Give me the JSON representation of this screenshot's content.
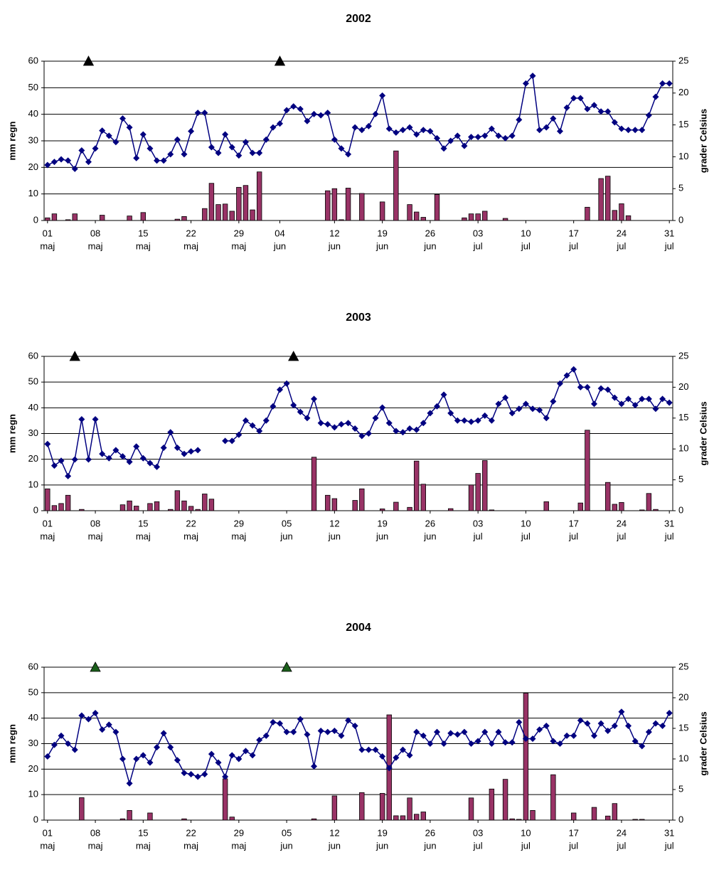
{
  "chart_data": [
    {
      "type": "bar_line",
      "title": "2002",
      "ylabel": "mm regn",
      "y2label": "grader Celsius",
      "categories": [
        [
          "01",
          "maj"
        ],
        null,
        null,
        null,
        null,
        null,
        null,
        [
          "08",
          "maj"
        ],
        null,
        null,
        null,
        null,
        null,
        null,
        [
          "15",
          "maj"
        ],
        null,
        null,
        null,
        null,
        null,
        null,
        [
          "22",
          "maj"
        ],
        null,
        null,
        null,
        null,
        null,
        null,
        [
          "29",
          "maj"
        ],
        null,
        null,
        null,
        null,
        null,
        [
          "04",
          "jun"
        ],
        null,
        null,
        null,
        null,
        null,
        null,
        null,
        [
          "12",
          "jun"
        ],
        null,
        null,
        null,
        null,
        null,
        null,
        [
          "19",
          "jun"
        ],
        null,
        null,
        null,
        null,
        null,
        null,
        [
          "26",
          "jun"
        ],
        null,
        null,
        null,
        null,
        null,
        null,
        [
          "03",
          "jul"
        ],
        null,
        null,
        null,
        null,
        null,
        null,
        [
          "10",
          "jul"
        ],
        null,
        null,
        null,
        null,
        null,
        null,
        [
          "17",
          "jul"
        ],
        null,
        null,
        null,
        null,
        null,
        null,
        [
          "24",
          "jul"
        ],
        null,
        null,
        null,
        null,
        null,
        null,
        [
          "31",
          "jul"
        ]
      ],
      "ylim": [
        0,
        60
      ],
      "yticks": [
        0,
        10,
        20,
        30,
        40,
        50,
        60
      ],
      "y2lim": [
        0,
        25
      ],
      "y2ticks": [
        0,
        5,
        10,
        15,
        20,
        25
      ],
      "grid": true,
      "series": [
        {
          "kind": "bar",
          "color": "#993366",
          "values": [
            1,
            2.5,
            0,
            0.3,
            2.5,
            0,
            0,
            0,
            2,
            0,
            0,
            0,
            1.7,
            0,
            3,
            0,
            0,
            0,
            0,
            0.5,
            1.5,
            0,
            0,
            4.5,
            14,
            6,
            6.2,
            3.5,
            12.5,
            13.2,
            4,
            18.3,
            0,
            0,
            0,
            0,
            0,
            0,
            0,
            0,
            0,
            11.2,
            12,
            0.3,
            12.2,
            0,
            10.2,
            0,
            0,
            7,
            0,
            26.2,
            0,
            6,
            3.2,
            1.2,
            0,
            9.8,
            0,
            0,
            0,
            1,
            2.5,
            2.5,
            3.5,
            0,
            0,
            0.8,
            0,
            0,
            0,
            0,
            0,
            0,
            0,
            0,
            0,
            0,
            0,
            5,
            0,
            15.8,
            16.7,
            3.8,
            6.3,
            1.8,
            0,
            0,
            0,
            0,
            0,
            0
          ]
        },
        {
          "kind": "line",
          "axis": "y2",
          "color": "#000080",
          "values": [
            8.7,
            9.2,
            9.6,
            9.4,
            8.1,
            11.0,
            9.2,
            11.3,
            14.1,
            13.3,
            12.3,
            16.0,
            14.6,
            9.8,
            13.5,
            11.3,
            9.4,
            9.4,
            10.4,
            12.7,
            10.4,
            14.0,
            16.9,
            16.9,
            11.5,
            10.6,
            13.5,
            11.5,
            10.2,
            12.3,
            10.6,
            10.6,
            12.7,
            14.6,
            15.2,
            17.3,
            17.9,
            17.5,
            15.6,
            16.7,
            16.5,
            16.9,
            12.7,
            11.3,
            10.4,
            14.6,
            14.2,
            14.8,
            16.7,
            19.6,
            14.4,
            13.8,
            14.2,
            14.6,
            13.5,
            14.2,
            14.0,
            12.9,
            11.3,
            12.5,
            13.3,
            11.7,
            13.1,
            13.1,
            13.3,
            14.4,
            13.3,
            12.9,
            13.3,
            15.8,
            21.5,
            22.7,
            14.2,
            14.6,
            16.0,
            14.0,
            17.7,
            19.2,
            19.2,
            17.5,
            18.1,
            17.1,
            17.1,
            15.4,
            14.4,
            14.2,
            14.2,
            14.2,
            16.5,
            19.4,
            21.5,
            21.5
          ]
        }
      ],
      "markers": {
        "color": "#000000",
        "x": [
          6,
          34
        ],
        "y": [
          60,
          60
        ]
      }
    },
    {
      "type": "bar_line",
      "title": "2003",
      "ylabel": "mm regn",
      "y2label": "grader Celsius",
      "categories": [
        [
          "01",
          "maj"
        ],
        null,
        null,
        null,
        null,
        null,
        null,
        [
          "08",
          "maj"
        ],
        null,
        null,
        null,
        null,
        null,
        null,
        [
          "15",
          "maj"
        ],
        null,
        null,
        null,
        null,
        null,
        null,
        [
          "22",
          "maj"
        ],
        null,
        null,
        null,
        null,
        null,
        null,
        [
          "29",
          "maj"
        ],
        null,
        null,
        null,
        null,
        null,
        null,
        [
          "05",
          "jun"
        ],
        null,
        null,
        null,
        null,
        null,
        null,
        [
          "12",
          "jun"
        ],
        null,
        null,
        null,
        null,
        null,
        null,
        [
          "19",
          "jun"
        ],
        null,
        null,
        null,
        null,
        null,
        null,
        [
          "26",
          "jun"
        ],
        null,
        null,
        null,
        null,
        null,
        null,
        [
          "03",
          "jul"
        ],
        null,
        null,
        null,
        null,
        null,
        null,
        [
          "10",
          "jul"
        ],
        null,
        null,
        null,
        null,
        null,
        null,
        [
          "17",
          "jul"
        ],
        null,
        null,
        null,
        null,
        null,
        null,
        [
          "24",
          "jul"
        ],
        null,
        null,
        null,
        null,
        null,
        null,
        [
          "31",
          "jul"
        ]
      ],
      "ylim": [
        0,
        60
      ],
      "yticks": [
        0,
        10,
        20,
        30,
        40,
        50,
        60
      ],
      "y2lim": [
        0,
        25
      ],
      "y2ticks": [
        0,
        5,
        10,
        15,
        20,
        25
      ],
      "grid": true,
      "series": [
        {
          "kind": "bar",
          "color": "#993366",
          "values": [
            8.5,
            2,
            2.8,
            6,
            0,
            0.5,
            0,
            0,
            0,
            0,
            0,
            2.3,
            3.8,
            1.8,
            0,
            2.8,
            3.5,
            0,
            0.5,
            7.8,
            3.8,
            1.7,
            0.5,
            6.5,
            4.5,
            0,
            0,
            0,
            0,
            0,
            0,
            0,
            0,
            0,
            0,
            0,
            0,
            0,
            0,
            20.8,
            0,
            6,
            4.7,
            0,
            0,
            4,
            8.5,
            0,
            0,
            0.7,
            0,
            3.3,
            0,
            1.3,
            19.3,
            10.3,
            0,
            0,
            0,
            0.8,
            0,
            0,
            10,
            14.5,
            19.5,
            0.3,
            0,
            0,
            0,
            0,
            0,
            0,
            0,
            3.5,
            0,
            0,
            0,
            0,
            3,
            31.3,
            0,
            0,
            11,
            2.5,
            3.2,
            0,
            0,
            0.3,
            6.7,
            0.5,
            0,
            0
          ]
        },
        {
          "kind": "line",
          "axis": "y2",
          "color": "#000080",
          "values": [
            10.8,
            7.3,
            8.1,
            5.6,
            8.3,
            14.8,
            8.3,
            14.8,
            9.2,
            8.5,
            9.8,
            8.8,
            7.9,
            10.4,
            8.5,
            7.7,
            7.1,
            10.2,
            12.7,
            10.2,
            9.2,
            9.6,
            9.8,
            null,
            null,
            null,
            11.3,
            11.3,
            12.3,
            14.6,
            13.8,
            12.9,
            14.6,
            16.9,
            19.6,
            20.6,
            17.1,
            16.0,
            15.0,
            18.1,
            14.2,
            14.0,
            13.5,
            14.0,
            14.2,
            13.3,
            12.1,
            12.5,
            15.0,
            16.7,
            14.2,
            12.9,
            12.7,
            13.3,
            13.1,
            14.2,
            15.8,
            16.9,
            18.8,
            15.8,
            14.6,
            14.6,
            14.4,
            14.6,
            15.4,
            14.6,
            17.3,
            18.3,
            15.8,
            16.5,
            17.3,
            16.5,
            16.3,
            15.0,
            17.7,
            20.6,
            21.9,
            22.9,
            20.0,
            20.0,
            17.3,
            19.8,
            19.6,
            18.3,
            17.3,
            18.1,
            17.1,
            18.1,
            18.1,
            16.5,
            18.1,
            17.5
          ]
        }
      ],
      "markers": {
        "color": "#000000",
        "x": [
          4,
          36
        ],
        "y": [
          60,
          60
        ]
      }
    },
    {
      "type": "bar_line",
      "title": "2004",
      "ylabel": "mm regn",
      "y2label": "grader Celsius",
      "categories": [
        [
          "01",
          "maj"
        ],
        null,
        null,
        null,
        null,
        null,
        null,
        [
          "08",
          "maj"
        ],
        null,
        null,
        null,
        null,
        null,
        null,
        [
          "15",
          "maj"
        ],
        null,
        null,
        null,
        null,
        null,
        null,
        [
          "22",
          "maj"
        ],
        null,
        null,
        null,
        null,
        null,
        null,
        [
          "29",
          "maj"
        ],
        null,
        null,
        null,
        null,
        null,
        null,
        [
          "05",
          "jun"
        ],
        null,
        null,
        null,
        null,
        null,
        null,
        [
          "12",
          "jun"
        ],
        null,
        null,
        null,
        null,
        null,
        null,
        [
          "19",
          "jun"
        ],
        null,
        null,
        null,
        null,
        null,
        null,
        [
          "26",
          "jun"
        ],
        null,
        null,
        null,
        null,
        null,
        null,
        [
          "03",
          "jul"
        ],
        null,
        null,
        null,
        null,
        null,
        null,
        [
          "10",
          "jul"
        ],
        null,
        null,
        null,
        null,
        null,
        null,
        [
          "17",
          "jul"
        ],
        null,
        null,
        null,
        null,
        null,
        null,
        [
          "24",
          "jul"
        ],
        null,
        null,
        null,
        null,
        null,
        null,
        [
          "31",
          "jul"
        ]
      ],
      "ylim": [
        0,
        60
      ],
      "yticks": [
        0,
        10,
        20,
        30,
        40,
        50,
        60
      ],
      "y2lim": [
        0,
        25
      ],
      "y2ticks": [
        0,
        5,
        10,
        15,
        20,
        25
      ],
      "grid": true,
      "series": [
        {
          "kind": "bar",
          "color": "#993366",
          "values": [
            0,
            0,
            0,
            0,
            0,
            8.8,
            0,
            0,
            0,
            0,
            0,
            0.5,
            3.8,
            0,
            0,
            2.8,
            0,
            0,
            0,
            0,
            0.5,
            0,
            0,
            0,
            0,
            0,
            16.2,
            1.2,
            0,
            0,
            0,
            0,
            0,
            0,
            0,
            0,
            0,
            0,
            0,
            0.5,
            0,
            0,
            9.5,
            0,
            0,
            0,
            10.8,
            0,
            0,
            10.5,
            41.3,
            1.7,
            1.7,
            8.7,
            2.3,
            3.2,
            0,
            0,
            0,
            0,
            0,
            0,
            8.7,
            0,
            0,
            12.2,
            0,
            16,
            0.5,
            0.3,
            49.8,
            3.8,
            0,
            0,
            17.8,
            0,
            0,
            2.8,
            0,
            0,
            5,
            0,
            1.6,
            6.5,
            0,
            0,
            0.3,
            0.3,
            0,
            0,
            0,
            0
          ]
        },
        {
          "kind": "line",
          "axis": "y2",
          "color": "#000080",
          "values": [
            10.4,
            12.3,
            13.8,
            12.5,
            11.5,
            17.1,
            16.5,
            17.5,
            14.8,
            15.6,
            14.4,
            10.0,
            6.0,
            10.0,
            10.6,
            9.4,
            11.9,
            14.2,
            11.9,
            9.8,
            7.7,
            7.5,
            7.1,
            7.5,
            10.8,
            9.4,
            7.1,
            10.6,
            10.0,
            11.3,
            10.6,
            13.1,
            13.8,
            16.0,
            15.8,
            14.4,
            14.4,
            16.5,
            14.0,
            8.8,
            14.6,
            14.4,
            14.6,
            13.8,
            16.3,
            15.4,
            11.5,
            11.5,
            11.5,
            10.4,
            8.5,
            10.2,
            11.5,
            10.6,
            14.4,
            13.8,
            12.5,
            14.4,
            12.5,
            14.2,
            14.0,
            14.4,
            12.5,
            12.9,
            14.4,
            12.5,
            14.4,
            12.7,
            12.7,
            16.0,
            13.3,
            13.3,
            14.8,
            15.4,
            12.9,
            12.5,
            13.8,
            13.8,
            16.3,
            15.8,
            13.8,
            15.8,
            14.6,
            15.4,
            17.7,
            15.4,
            12.9,
            12.1,
            14.4,
            15.8,
            15.4,
            17.5
          ]
        }
      ],
      "markers": {
        "color": "#1a5e1a",
        "x": [
          7,
          35
        ],
        "y": [
          60,
          60
        ]
      }
    }
  ]
}
